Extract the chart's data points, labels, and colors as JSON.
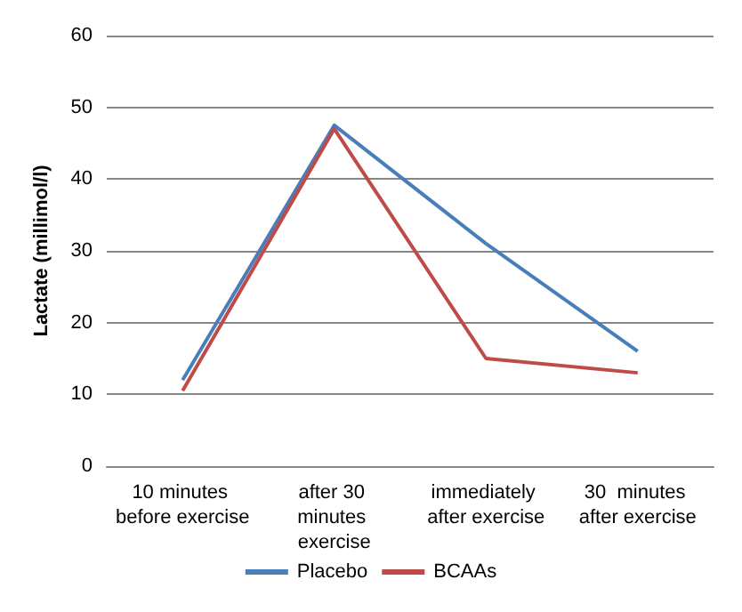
{
  "chart_data": {
    "type": "line",
    "ylabel": "Lactate (millimol/l)",
    "categories": [
      "10 minutes before exercise",
      "after 30 minutes exercise",
      "immediately after exercise",
      "30  minutes after exercise"
    ],
    "series": [
      {
        "name": "Placebo",
        "color": "#4a7ebb",
        "values": [
          12,
          47.5,
          31,
          16
        ]
      },
      {
        "name": "BCAAs",
        "color": "#be4b48",
        "values": [
          10.5,
          47,
          15,
          13
        ]
      }
    ],
    "ylim": [
      0,
      60
    ],
    "yticks": [
      0,
      10,
      20,
      30,
      40,
      50,
      60
    ],
    "grid": "y",
    "legend": "bottom",
    "marker": "none",
    "line_style": "solid"
  }
}
